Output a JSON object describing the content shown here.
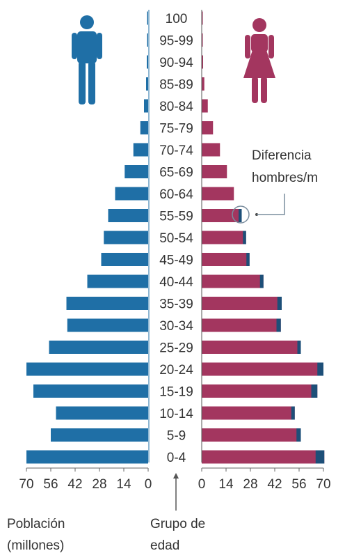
{
  "chart_data": {
    "type": "bar",
    "subtype": "population-pyramid",
    "categories": [
      "100",
      "95-99",
      "90-94",
      "85-89",
      "80-84",
      "75-79",
      "70-74",
      "65-69",
      "60-64",
      "55-59",
      "50-54",
      "45-49",
      "40-44",
      "35-39",
      "30-34",
      "25-29",
      "20-24",
      "15-19",
      "10-14",
      "5-9",
      "0-4"
    ],
    "series": [
      {
        "name": "",
        "side": "left",
        "values": [
          0.3,
          0.5,
          0.8,
          1.2,
          2.4,
          4.5,
          8.5,
          13.5,
          19,
          23,
          25.5,
          27,
          35,
          47,
          46.5,
          57,
          70,
          66,
          53,
          56,
          70
        ]
      },
      {
        "name": "",
        "side": "right",
        "values": [
          0.3,
          0.5,
          0.8,
          1.5,
          3.5,
          6.5,
          10.5,
          14.5,
          18.5,
          23,
          25.5,
          27.5,
          35.5,
          46,
          45.5,
          57,
          70,
          66.5,
          53.5,
          57,
          70.5
        ]
      }
    ],
    "difference": [
      0,
      0,
      0,
      0,
      0,
      0,
      0,
      0,
      0,
      1.8,
      1.8,
      1.8,
      2,
      2.5,
      2.5,
      2,
      3.5,
      3.5,
      2,
      2.5,
      5
    ],
    "x_ticks_left": [
      "70",
      "56",
      "42",
      "28",
      "14",
      "0"
    ],
    "x_ticks_right": [
      "0",
      "14",
      "28",
      "42",
      "56",
      "70"
    ],
    "xlim": [
      0,
      70
    ],
    "xlabel_left": "Población (millones)",
    "xlabel_center": "Grupo de edad",
    "annotation": "Diferencia hombres/m",
    "colors": {
      "male": "#1f6fa6",
      "female": "#a3365f",
      "difference": "#1d4f78",
      "annotation": "#7a8d9e"
    },
    "icons": {
      "male": "male-figure-icon",
      "female": "female-figure-icon"
    }
  }
}
